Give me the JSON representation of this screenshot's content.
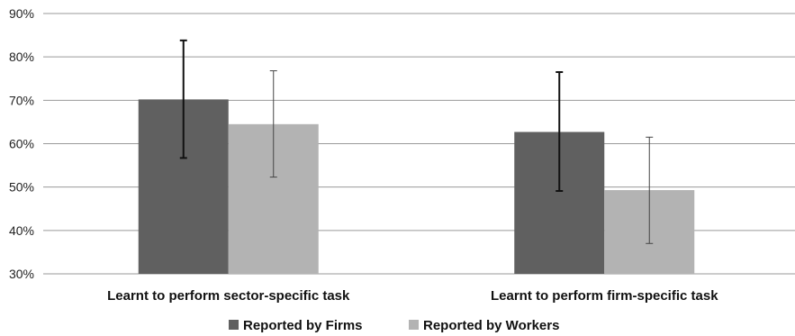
{
  "chart_data": {
    "type": "bar",
    "title": "",
    "xlabel": "",
    "ylabel": "",
    "categories": [
      "Learnt to perform sector-specific task",
      "Learnt to perform firm-specific task"
    ],
    "series": [
      {
        "name": "Reported by Firms",
        "color": "#606060",
        "values": [
          70.2,
          62.7
        ],
        "error_low": [
          56.7,
          49.1
        ],
        "error_high": [
          83.8,
          76.5
        ]
      },
      {
        "name": "Reported by Workers",
        "color": "#b3b3b3",
        "values": [
          64.5,
          49.3
        ],
        "error_low": [
          52.3,
          37.0
        ],
        "error_high": [
          76.8,
          61.5
        ]
      }
    ],
    "ylim": [
      30,
      90
    ],
    "yticks": [
      30,
      40,
      50,
      60,
      70,
      80,
      90
    ],
    "ytick_labels": [
      "30%",
      "40%",
      "50%",
      "60%",
      "70%",
      "80%",
      "90%"
    ],
    "grid": true,
    "legend_position": "bottom"
  }
}
